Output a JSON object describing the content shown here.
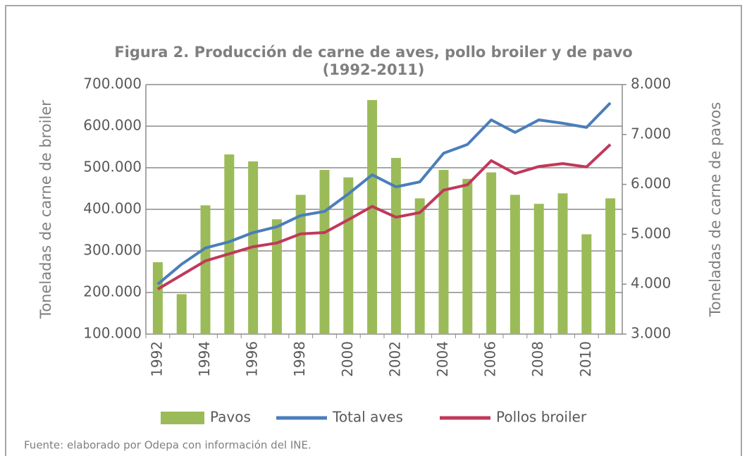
{
  "chart_data": {
    "type": "bar_line",
    "title": [
      "Figura 2. Producción de carne de aves, pollo broiler y de pavo",
      "(1992-2011)"
    ],
    "ylabel": "Toneladas de carne de broiler",
    "y2label": "Toneladas de carne de pavos",
    "categories": [
      "1992",
      null,
      "1994",
      null,
      "1996",
      null,
      "1998",
      null,
      "2000",
      null,
      "2002",
      null,
      "2004",
      null,
      "2006",
      null,
      "2008",
      null,
      "2010",
      null
    ],
    "series": [
      {
        "name": "Pavos",
        "type": "bar",
        "axis": "y2",
        "color": "#9bbb59",
        "values": [
          4440,
          3800,
          5580,
          6600,
          6460,
          5300,
          5790,
          6290,
          6140,
          7690,
          6530,
          5720,
          6290,
          6110,
          6240,
          5790,
          5610,
          5820,
          5000,
          5720
        ]
      },
      {
        "name": "Total aves",
        "type": "line",
        "axis": "y",
        "color": "#4a7ebb",
        "values": [
          220000,
          268000,
          307000,
          322000,
          344000,
          358000,
          385000,
          395000,
          437000,
          483000,
          454000,
          466000,
          535000,
          556000,
          615000,
          585000,
          615000,
          607000,
          597000,
          656000
        ]
      },
      {
        "name": "Pollos broiler",
        "type": "line",
        "axis": "y",
        "color": "#c0395a",
        "values": [
          208000,
          242000,
          276000,
          293000,
          310000,
          319000,
          341000,
          344000,
          375000,
          407000,
          381000,
          392000,
          446000,
          459000,
          517000,
          486000,
          503000,
          510000,
          502000,
          556000
        ]
      }
    ],
    "ylim": [
      100000,
      700000
    ],
    "yticks": [
      {
        "value": 100000,
        "label": "100.000"
      },
      {
        "value": 200000,
        "label": "200.000"
      },
      {
        "value": 300000,
        "label": "300.000"
      },
      {
        "value": 400000,
        "label": "400.000"
      },
      {
        "value": 500000,
        "label": "500.000"
      },
      {
        "value": 600000,
        "label": "600.000"
      },
      {
        "value": 700000,
        "label": "700.000"
      }
    ],
    "y2lim": [
      3000,
      8000
    ],
    "y2ticks": [
      {
        "value": 3000,
        "label": "3.000"
      },
      {
        "value": 4000,
        "label": "4.000"
      },
      {
        "value": 5000,
        "label": "5.000"
      },
      {
        "value": 6000,
        "label": "6.000"
      },
      {
        "value": 7000,
        "label": "7.000"
      },
      {
        "value": 8000,
        "label": "8.000"
      }
    ],
    "grid": true,
    "legend": "bottom",
    "source": "Fuente: elaborado por Odepa con información del INE."
  }
}
